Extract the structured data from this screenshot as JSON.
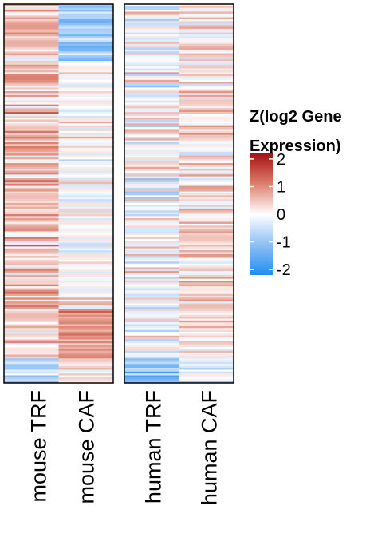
{
  "chart_data": {
    "type": "heatmap",
    "title": "",
    "columns": [
      "mouse TRF",
      "mouse CAF",
      "human TRF",
      "human CAF"
    ],
    "panels": [
      {
        "name": "mouse",
        "columns": [
          "mouse TRF",
          "mouse CAF"
        ]
      },
      {
        "name": "human",
        "columns": [
          "human TRF",
          "human CAF"
        ]
      }
    ],
    "row_count": 200,
    "legend": {
      "title_lines": [
        "Z(log2 Gene",
        "Expression)"
      ],
      "ticks": [
        2,
        1,
        0,
        -1,
        -2
      ],
      "tick_labels": [
        "2",
        "1",
        "0",
        "-1",
        "-2"
      ],
      "range": [
        -2.2,
        2.2
      ],
      "placement": "right"
    },
    "colors": {
      "high": "#a50f15",
      "mid_high": "#dd7f6e",
      "mid": "#ffffff",
      "mid_low": "#8fbff5",
      "low": "#1f8ef2"
    },
    "z_values_note_free": true
  }
}
